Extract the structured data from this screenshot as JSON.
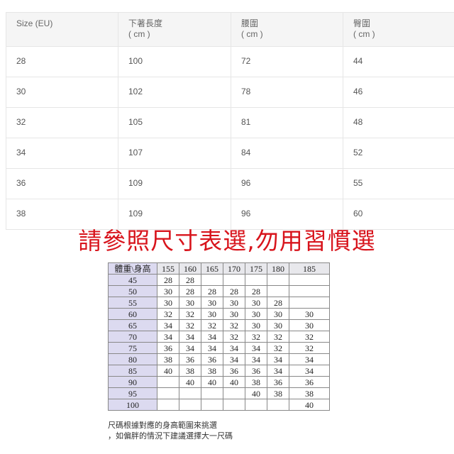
{
  "size_table": {
    "headers": [
      {
        "line1": "Size (EU)",
        "line2": ""
      },
      {
        "line1": "下著長度",
        "line2": "( cm )"
      },
      {
        "line1": "腰圍",
        "line2": "( cm )"
      },
      {
        "line1": "臀圍",
        "line2": "( cm )"
      }
    ],
    "rows": [
      [
        "28",
        "100",
        "72",
        "44"
      ],
      [
        "30",
        "102",
        "78",
        "46"
      ],
      [
        "32",
        "105",
        "81",
        "48"
      ],
      [
        "34",
        "107",
        "84",
        "52"
      ],
      [
        "36",
        "109",
        "96",
        "55"
      ],
      [
        "38",
        "109",
        "96",
        "60"
      ]
    ]
  },
  "slogan": "請參照尺寸表選,勿用習慣選",
  "fit_chart": {
    "corner": "體重\\身高",
    "heights": [
      "155",
      "160",
      "165",
      "170",
      "175",
      "180",
      "185"
    ],
    "rows": [
      {
        "w": "45",
        "v": [
          "28",
          "28",
          "",
          "",
          "",
          "",
          ""
        ]
      },
      {
        "w": "50",
        "v": [
          "30",
          "28",
          "28",
          "28",
          "28",
          "",
          ""
        ]
      },
      {
        "w": "55",
        "v": [
          "30",
          "30",
          "30",
          "30",
          "30",
          "28",
          ""
        ]
      },
      {
        "w": "60",
        "v": [
          "32",
          "32",
          "30",
          "30",
          "30",
          "30",
          "30"
        ]
      },
      {
        "w": "65",
        "v": [
          "34",
          "32",
          "32",
          "32",
          "30",
          "30",
          "30"
        ]
      },
      {
        "w": "70",
        "v": [
          "34",
          "34",
          "34",
          "32",
          "32",
          "32",
          "32"
        ]
      },
      {
        "w": "75",
        "v": [
          "36",
          "34",
          "34",
          "34",
          "34",
          "32",
          "32"
        ]
      },
      {
        "w": "80",
        "v": [
          "38",
          "36",
          "36",
          "34",
          "34",
          "34",
          "34"
        ]
      },
      {
        "w": "85",
        "v": [
          "40",
          "38",
          "38",
          "36",
          "36",
          "34",
          "34"
        ]
      },
      {
        "w": "90",
        "v": [
          "",
          "40",
          "40",
          "40",
          "38",
          "36",
          "36"
        ]
      },
      {
        "w": "95",
        "v": [
          "",
          "",
          "",
          "",
          "40",
          "38",
          "38"
        ]
      },
      {
        "w": "100",
        "v": [
          "",
          "",
          "",
          "",
          "",
          "",
          "40"
        ]
      }
    ],
    "notes": [
      "尺碼根據對應的身高範圍來挑選",
      "，如偏胖的情況下建議選擇大一尺碼"
    ]
  }
}
